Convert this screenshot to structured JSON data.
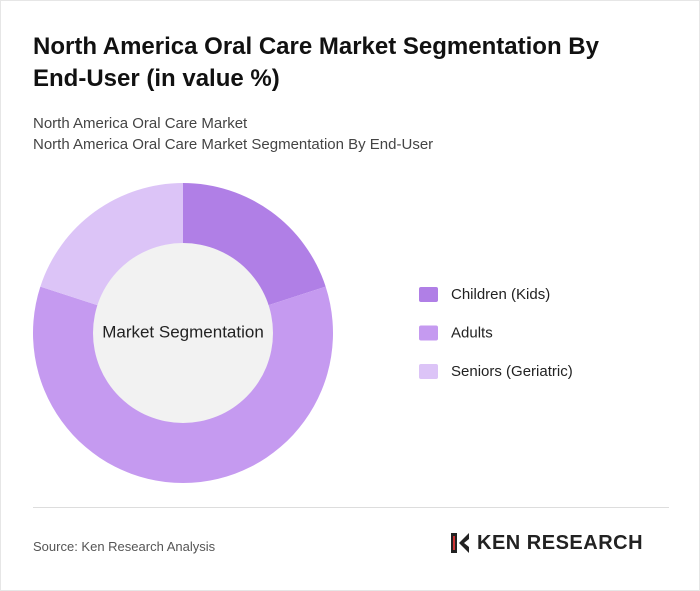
{
  "chart_data": {
    "type": "donut",
    "title": "North America Oral Care Market Segmentation By End-User (in value %)",
    "subtitle": [
      "North America Oral Care Market",
      "North America Oral Care Market Segmentation By End-User"
    ],
    "center_label": "Market Segmentation",
    "categories": [
      "Children (Kids)",
      "Adults",
      "Seniors (Geriatric)"
    ],
    "values": [
      20,
      60,
      20
    ],
    "colors": [
      "#b07fe6",
      "#c59af0",
      "#dcc4f7"
    ]
  },
  "source": "Source: Ken Research Analysis",
  "logo": "KEN RESEARCH"
}
